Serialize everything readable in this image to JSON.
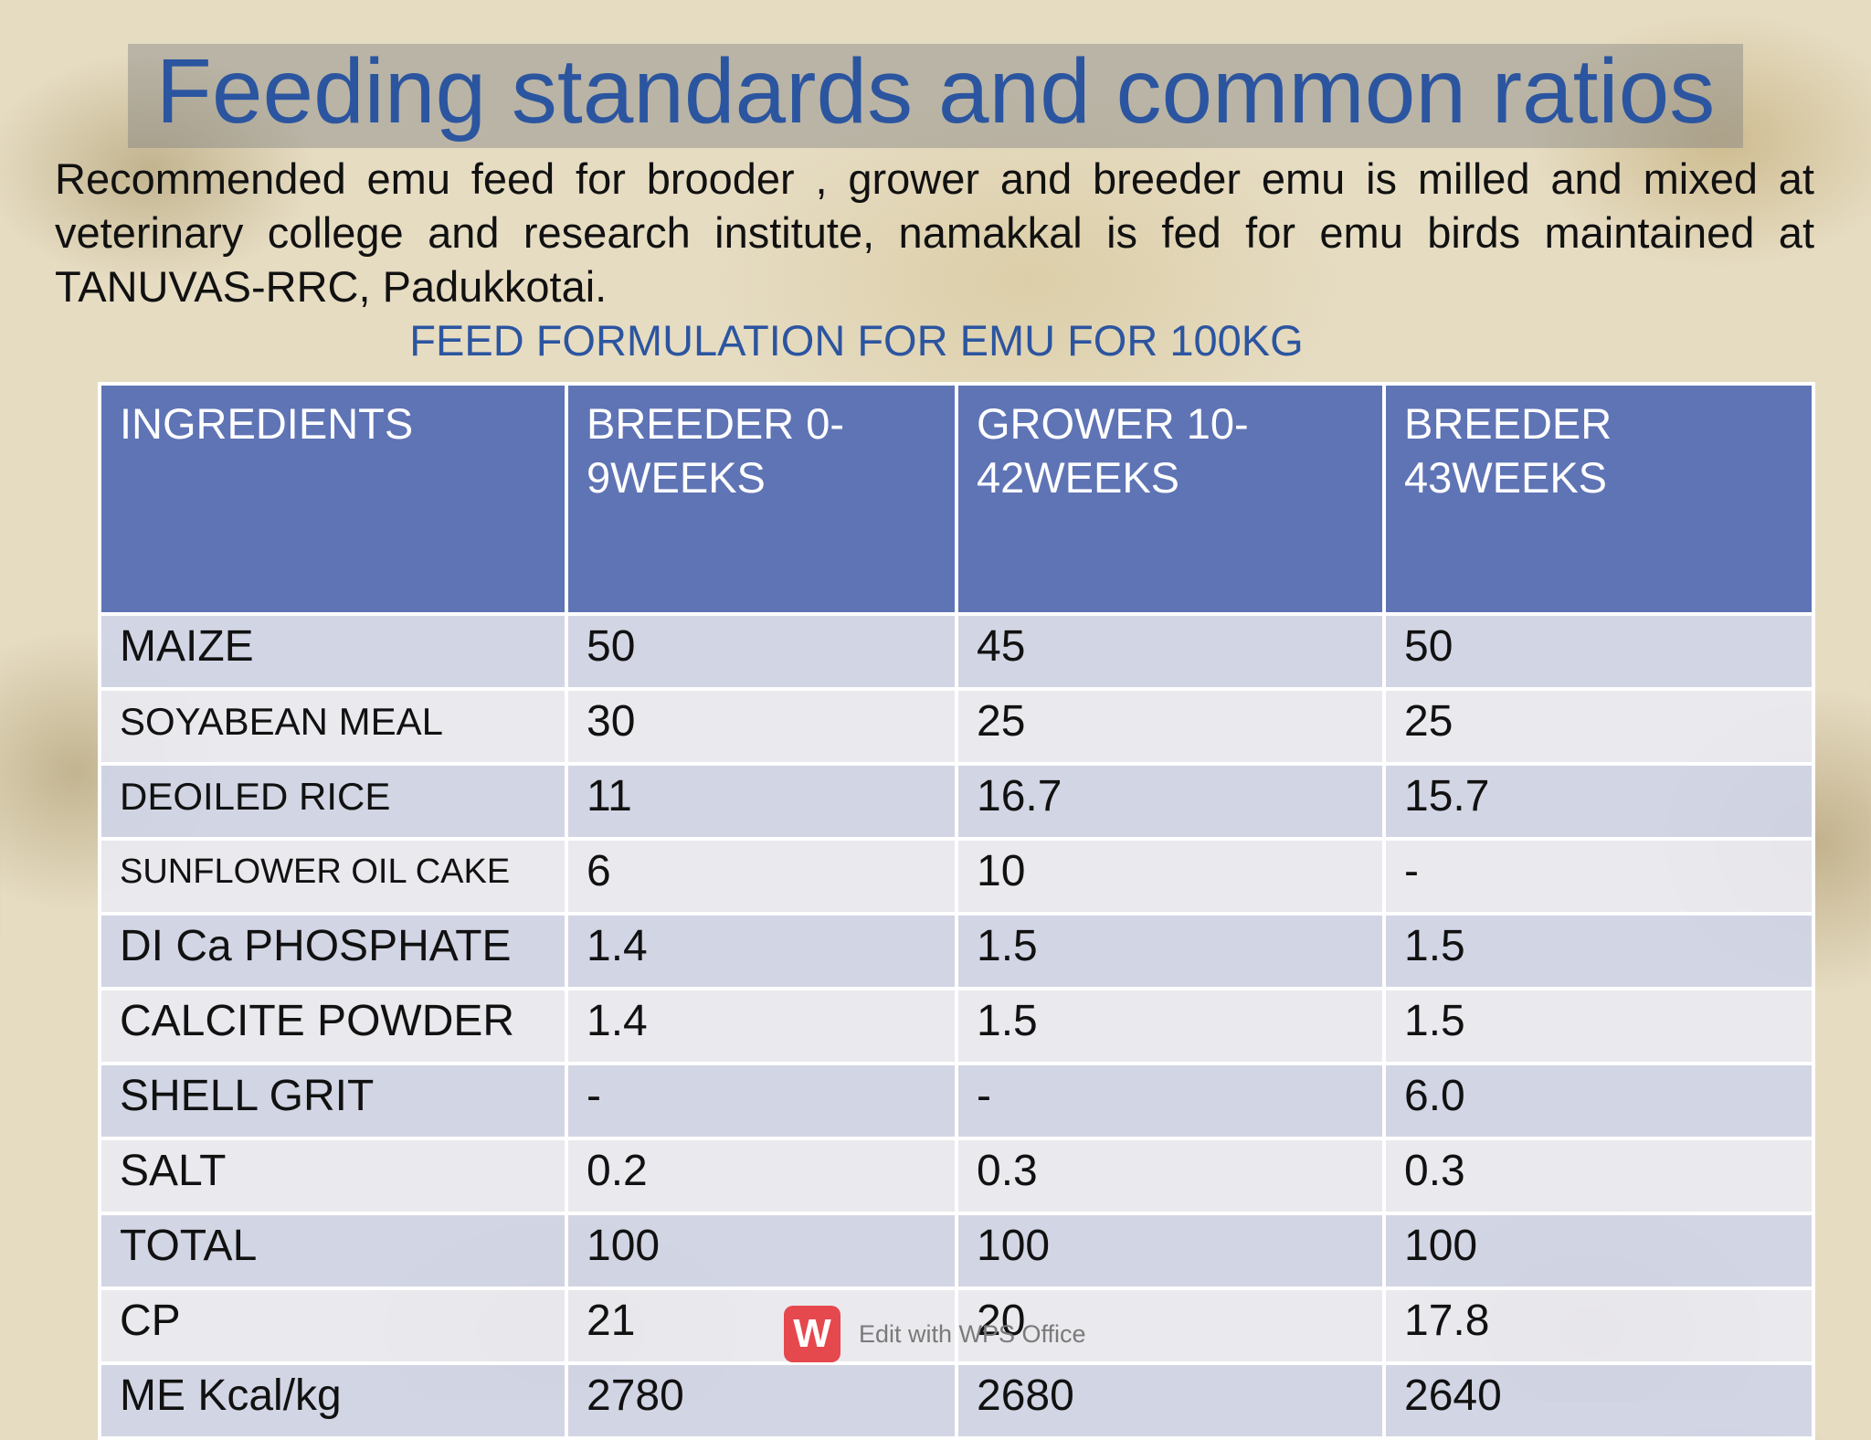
{
  "slide": {
    "title": "Feeding standards and common ratios",
    "intro": "Recommended emu feed for brooder , grower and breeder emu is milled and mixed at  veterinary college and research institute, namakkal is fed for emu birds maintained at  TANUVAS-RRC, Padukkotai.",
    "table_title": "FEED FORMULATION FOR EMU FOR 100KG"
  },
  "table": {
    "headers": [
      "INGREDIENTS",
      "BREEDER  0-9WEEKS",
      "GROWER 10-42WEEKS",
      "BREEDER 43WEEKS"
    ],
    "rows": [
      [
        "MAIZE",
        "50",
        "45",
        "50"
      ],
      [
        "SOYABEAN MEAL",
        "30",
        "25",
        "25"
      ],
      [
        "DEOILED RICE",
        "11",
        "16.7",
        "15.7"
      ],
      [
        "SUNFLOWER OIL CAKE",
        "6",
        "10",
        "-"
      ],
      [
        "DI Ca PHOSPHATE",
        "1.4",
        "1.5",
        "1.5"
      ],
      [
        "CALCITE POWDER",
        "1.4",
        "1.5",
        "1.5"
      ],
      [
        "SHELL GRIT",
        "-",
        "-",
        "6.0"
      ],
      [
        "SALT",
        "0.2",
        "0.3",
        "0.3"
      ],
      [
        "TOTAL",
        "100",
        "100",
        "100"
      ],
      [
        "CP",
        "21",
        "20",
        "17.8"
      ],
      [
        "ME Kcal/kg",
        "2780",
        "2680",
        "2640"
      ]
    ]
  },
  "watermark": {
    "icon": "wps-logo-icon",
    "icon_glyph": "W",
    "text": "Edit with WPS Office"
  },
  "colors": {
    "title": "#2c55a0",
    "header_bg": "#5f74b5",
    "row_odd": "#d0d4e6",
    "row_even": "#e9eaf1"
  }
}
